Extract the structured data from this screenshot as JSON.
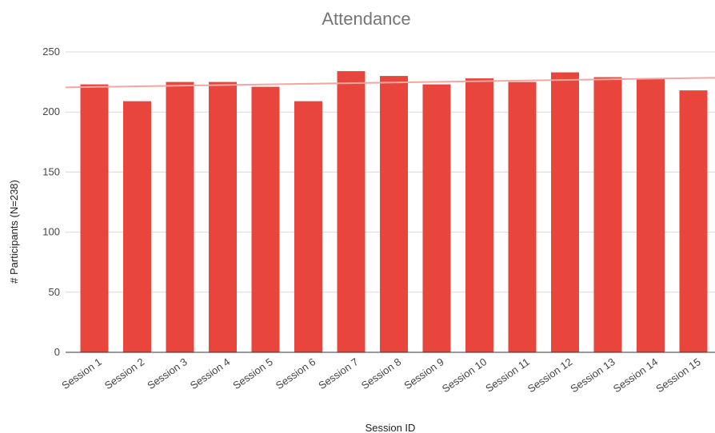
{
  "chart_data": {
    "type": "bar",
    "title": "Attendance",
    "xlabel": "Session ID",
    "ylabel": "# Participants (N=238)",
    "categories": [
      "Session 1",
      "Session 2",
      "Session 3",
      "Session 4",
      "Session 5",
      "Session 6",
      "Session 7",
      "Session 8",
      "Session 9",
      "Session 10",
      "Session 11",
      "Session 12",
      "Session 13",
      "Session 14",
      "Session 15"
    ],
    "values": [
      223,
      209,
      225,
      225,
      221,
      209,
      234,
      230,
      223,
      228,
      225,
      233,
      229,
      228,
      218
    ],
    "ylim": [
      0,
      250
    ],
    "yticks": [
      0,
      50,
      100,
      150,
      200,
      250
    ],
    "grid": true,
    "trendline": {
      "type": "linear",
      "start": 220.5,
      "end": 228.5
    },
    "colors": {
      "bar": "#e8453c",
      "trend": "#f4a6a0",
      "grid": "#d9d9d9",
      "axis": "#333333"
    }
  }
}
